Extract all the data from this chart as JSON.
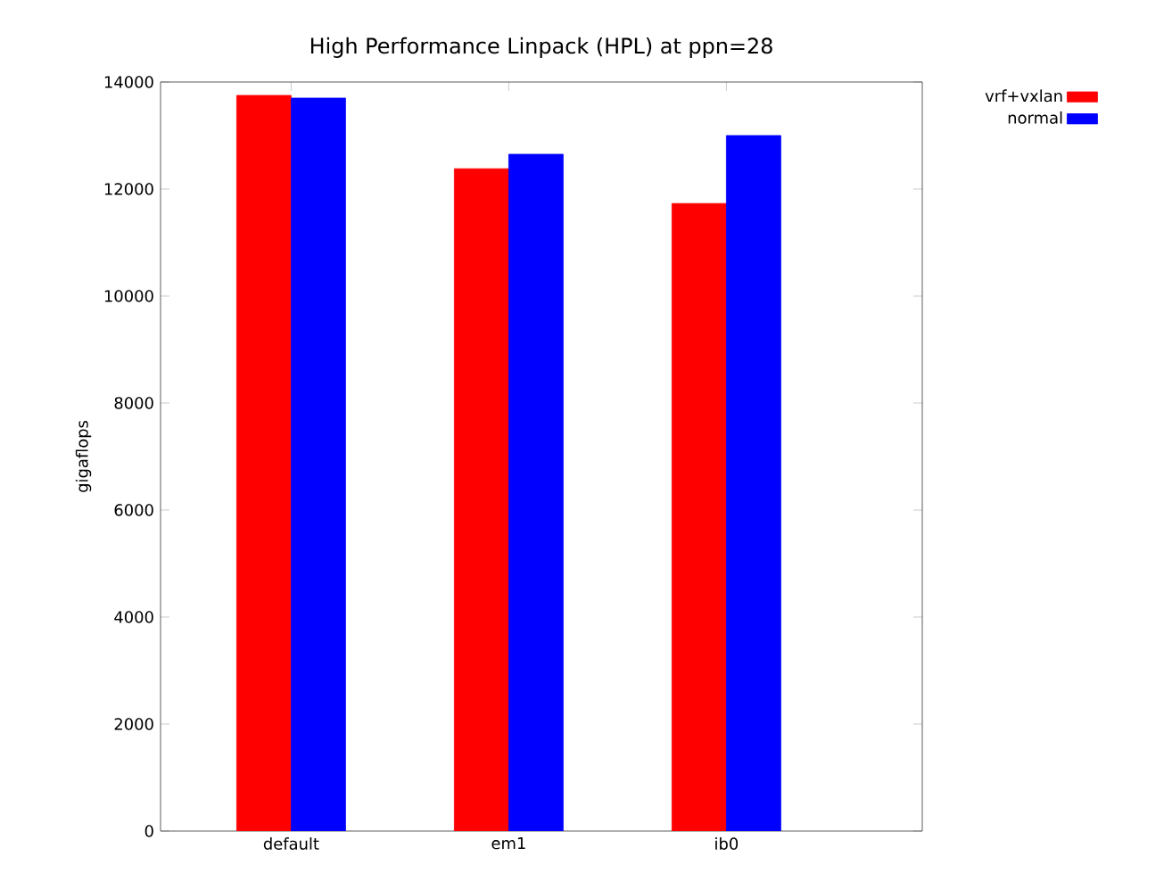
{
  "chart_data": {
    "type": "bar",
    "title": "High Performance Linpack (HPL) at ppn=28",
    "ylabel": "gigaflops",
    "categories": [
      "default",
      "em1",
      "ib0"
    ],
    "series": [
      {
        "name": "vrf+vxlan",
        "color": "#ff0000",
        "values": [
          13750,
          12380,
          11730
        ]
      },
      {
        "name": "normal",
        "color": "#0000ff",
        "values": [
          13700,
          12650,
          13000
        ]
      }
    ],
    "ylim": [
      0,
      14000
    ],
    "yticks": [
      0,
      2000,
      4000,
      6000,
      8000,
      10000,
      12000,
      14000
    ],
    "legend": "top right",
    "grid": false
  }
}
